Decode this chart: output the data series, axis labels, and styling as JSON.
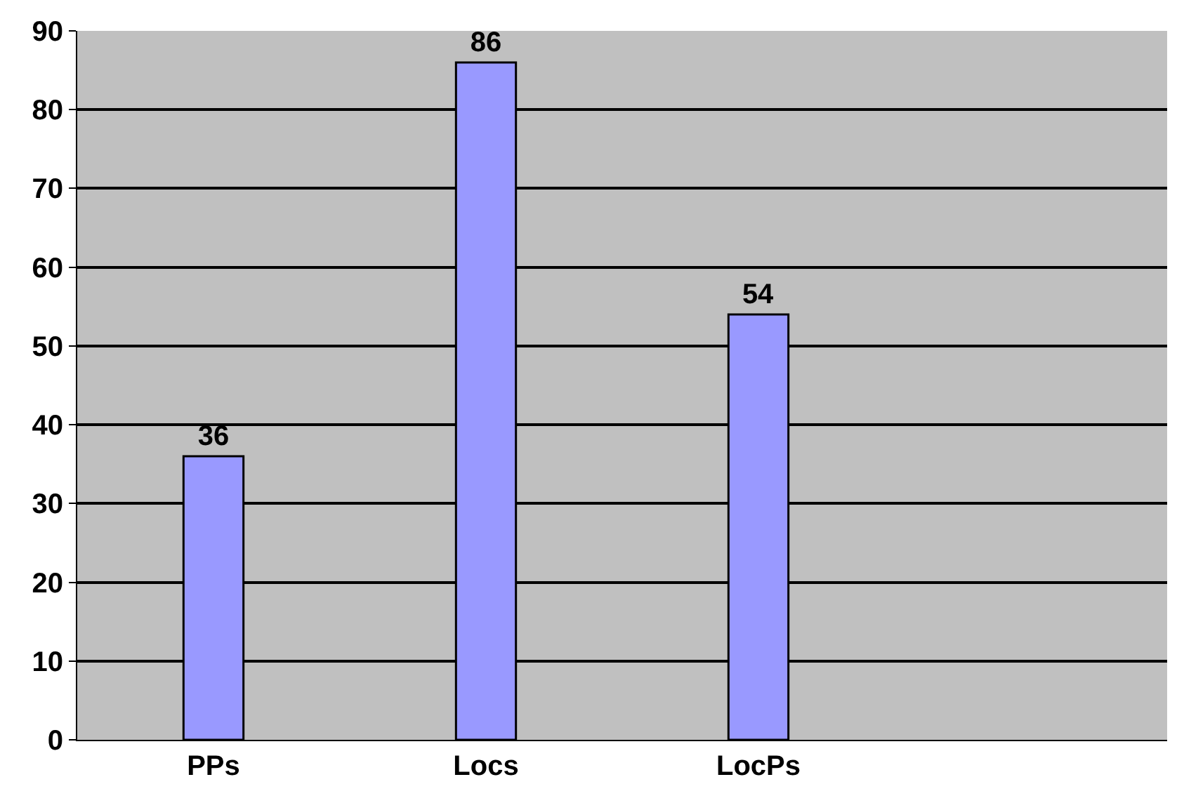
{
  "chart_data": {
    "type": "bar",
    "categories": [
      "PPs",
      "Locs",
      "LocPs",
      null
    ],
    "values": [
      36,
      86,
      54,
      null
    ],
    "color": "#9999ff",
    "ylim": [
      0,
      90
    ],
    "yticks": [
      0,
      10,
      20,
      30,
      40,
      50,
      60,
      70,
      80,
      90
    ],
    "grid": "y",
    "data_labels": true,
    "legend": false
  }
}
